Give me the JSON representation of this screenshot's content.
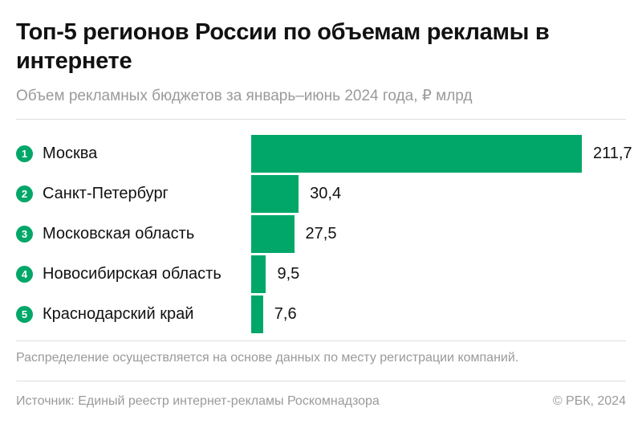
{
  "title": "Топ-5 регионов России по объемам рекламы в интернете",
  "subtitle": "Объем рекламных бюджетов за январь–июнь 2024 года, ₽ млрд",
  "note": "Распределение осуществляется на основе данных по месту регистрации компаний.",
  "source": "Источник: Единый реестр интернет-рекламы Роскомнадзора",
  "copyright": "© РБК, 2024",
  "colors": {
    "bar": "#00a768",
    "text": "#111111",
    "muted": "#9a9a9a"
  },
  "chart_data": {
    "type": "bar",
    "orientation": "horizontal",
    "ranks": [
      "1",
      "2",
      "3",
      "4",
      "5"
    ],
    "categories": [
      "Москва",
      "Санкт-Петербург",
      "Московская область",
      "Новосибирская область",
      "Краснодарский край"
    ],
    "values": [
      211.7,
      30.4,
      27.5,
      9.5,
      7.6
    ],
    "value_labels": [
      "211,7",
      "30,4",
      "27,5",
      "9,5",
      "7,6"
    ],
    "unit": "₽ млрд",
    "grid": false
  }
}
